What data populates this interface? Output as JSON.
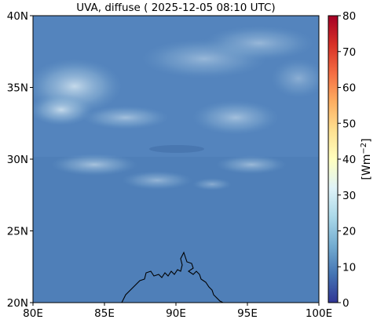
{
  "title": "UVA, diffuse ( 2025-12-05 08:10 UTC)",
  "map": {
    "x_ticks": [
      {
        "value": 80,
        "label": "80E"
      },
      {
        "value": 85,
        "label": "85E"
      },
      {
        "value": 90,
        "label": "90E"
      },
      {
        "value": 95,
        "label": "95E"
      },
      {
        "value": 100,
        "label": "100E"
      }
    ],
    "y_ticks": [
      {
        "value": 20,
        "label": "20N"
      },
      {
        "value": 25,
        "label": "25N"
      },
      {
        "value": 30,
        "label": "30N"
      },
      {
        "value": 35,
        "label": "35N"
      },
      {
        "value": 40,
        "label": "40N"
      }
    ],
    "lon_range": [
      80,
      100
    ],
    "lat_range": [
      20,
      40
    ],
    "field_color": "#4f7fb8",
    "coastline_color": "#000000"
  },
  "colorbar": {
    "ticks": [
      {
        "value": 0,
        "label": "0"
      },
      {
        "value": 10,
        "label": "10"
      },
      {
        "value": 20,
        "label": "20"
      },
      {
        "value": 30,
        "label": "30"
      },
      {
        "value": 40,
        "label": "40"
      },
      {
        "value": 50,
        "label": "50"
      },
      {
        "value": 60,
        "label": "60"
      },
      {
        "value": 70,
        "label": "70"
      },
      {
        "value": 80,
        "label": "80"
      }
    ],
    "range": [
      0,
      80
    ],
    "label_prefix": "[Wm",
    "label_exp": "−2",
    "label_suffix": "]",
    "colormap": "RdYlBu_r"
  }
}
